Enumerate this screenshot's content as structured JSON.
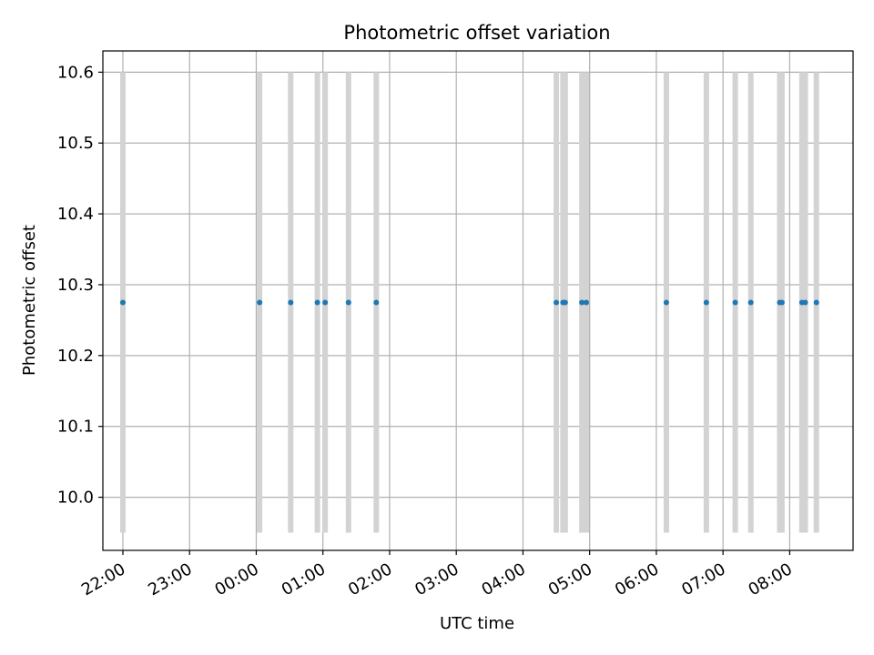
{
  "chart_data": {
    "type": "scatter",
    "title": "Photometric offset variation",
    "xlabel": "UTC time",
    "ylabel": "Photometric offset",
    "x_is_time": true,
    "xlim": [
      "21:42",
      "08:57"
    ],
    "ylim": [
      9.95,
      10.6
    ],
    "y_axis_range": [
      9.925,
      10.63
    ],
    "yticks": [
      10.0,
      10.1,
      10.2,
      10.3,
      10.4,
      10.5,
      10.6
    ],
    "xticks": [
      "22:00",
      "23:00",
      "00:00",
      "01:00",
      "02:00",
      "03:00",
      "04:00",
      "05:00",
      "06:00",
      "07:00",
      "08:00"
    ],
    "grid": true,
    "colors": {
      "points": "#1f77b4",
      "bands": "#d3d3d3",
      "grid": "#b0b0b0"
    },
    "series": [
      {
        "x": [
          "22:00",
          "00:03",
          "00:31",
          "00:55",
          "01:02",
          "01:23",
          "01:48",
          "04:30",
          "04:36",
          "04:38",
          "04:53",
          "04:57",
          "06:09",
          "06:45",
          "07:11",
          "07:25",
          "07:51",
          "07:53",
          "08:11",
          "08:14",
          "08:24"
        ],
        "y": [
          10.275,
          10.275,
          10.275,
          10.275,
          10.275,
          10.275,
          10.275,
          10.275,
          10.275,
          10.275,
          10.275,
          10.275,
          10.275,
          10.275,
          10.275,
          10.275,
          10.275,
          10.275,
          10.275,
          10.275,
          10.275
        ]
      }
    ],
    "bands": {
      "x": [
        "22:00",
        "00:03",
        "00:31",
        "00:55",
        "01:02",
        "01:23",
        "01:48",
        "04:30",
        "04:36",
        "04:38",
        "04:53",
        "04:57",
        "06:09",
        "06:45",
        "07:11",
        "07:25",
        "07:51",
        "07:53",
        "08:11",
        "08:14",
        "08:24"
      ],
      "y_range": [
        9.95,
        10.6
      ]
    }
  }
}
